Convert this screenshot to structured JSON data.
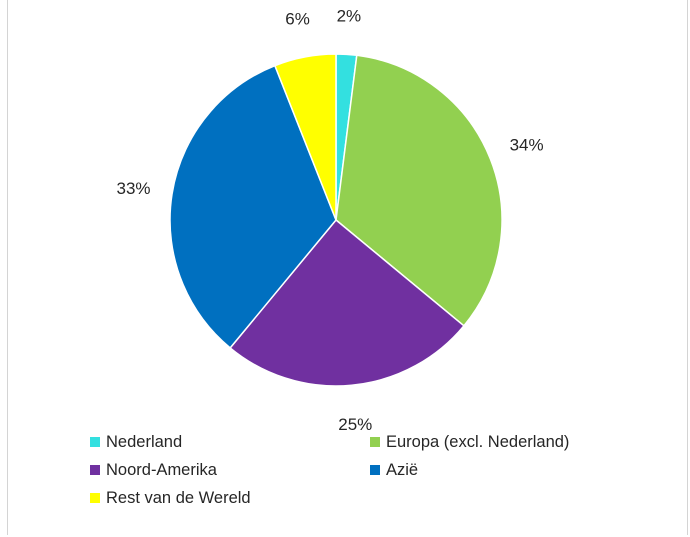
{
  "chart_data": {
    "type": "pie",
    "title": "",
    "categories": [
      "Nederland",
      "Europa (excl. Nederland)",
      "Noord-Amerika",
      "Azië",
      "Rest van de Wereld"
    ],
    "values": [
      2,
      34,
      25,
      33,
      6
    ],
    "labels": [
      "2%",
      "34%",
      "25%",
      "33%",
      "6%"
    ],
    "colors": [
      "#33e0e0",
      "#92d050",
      "#7030a0",
      "#0070c0",
      "#ffff00"
    ],
    "start_angle_deg": 0,
    "direction": "clockwise",
    "legend_position": "bottom"
  },
  "legend": {
    "items": [
      {
        "label": "Nederland",
        "color": "#33e0e0"
      },
      {
        "label": "Europa (excl. Nederland)",
        "color": "#92d050"
      },
      {
        "label": "Noord-Amerika",
        "color": "#7030a0"
      },
      {
        "label": "Azië",
        "color": "#0070c0"
      },
      {
        "label": "Rest van de Wereld",
        "color": "#ffff00"
      }
    ]
  }
}
